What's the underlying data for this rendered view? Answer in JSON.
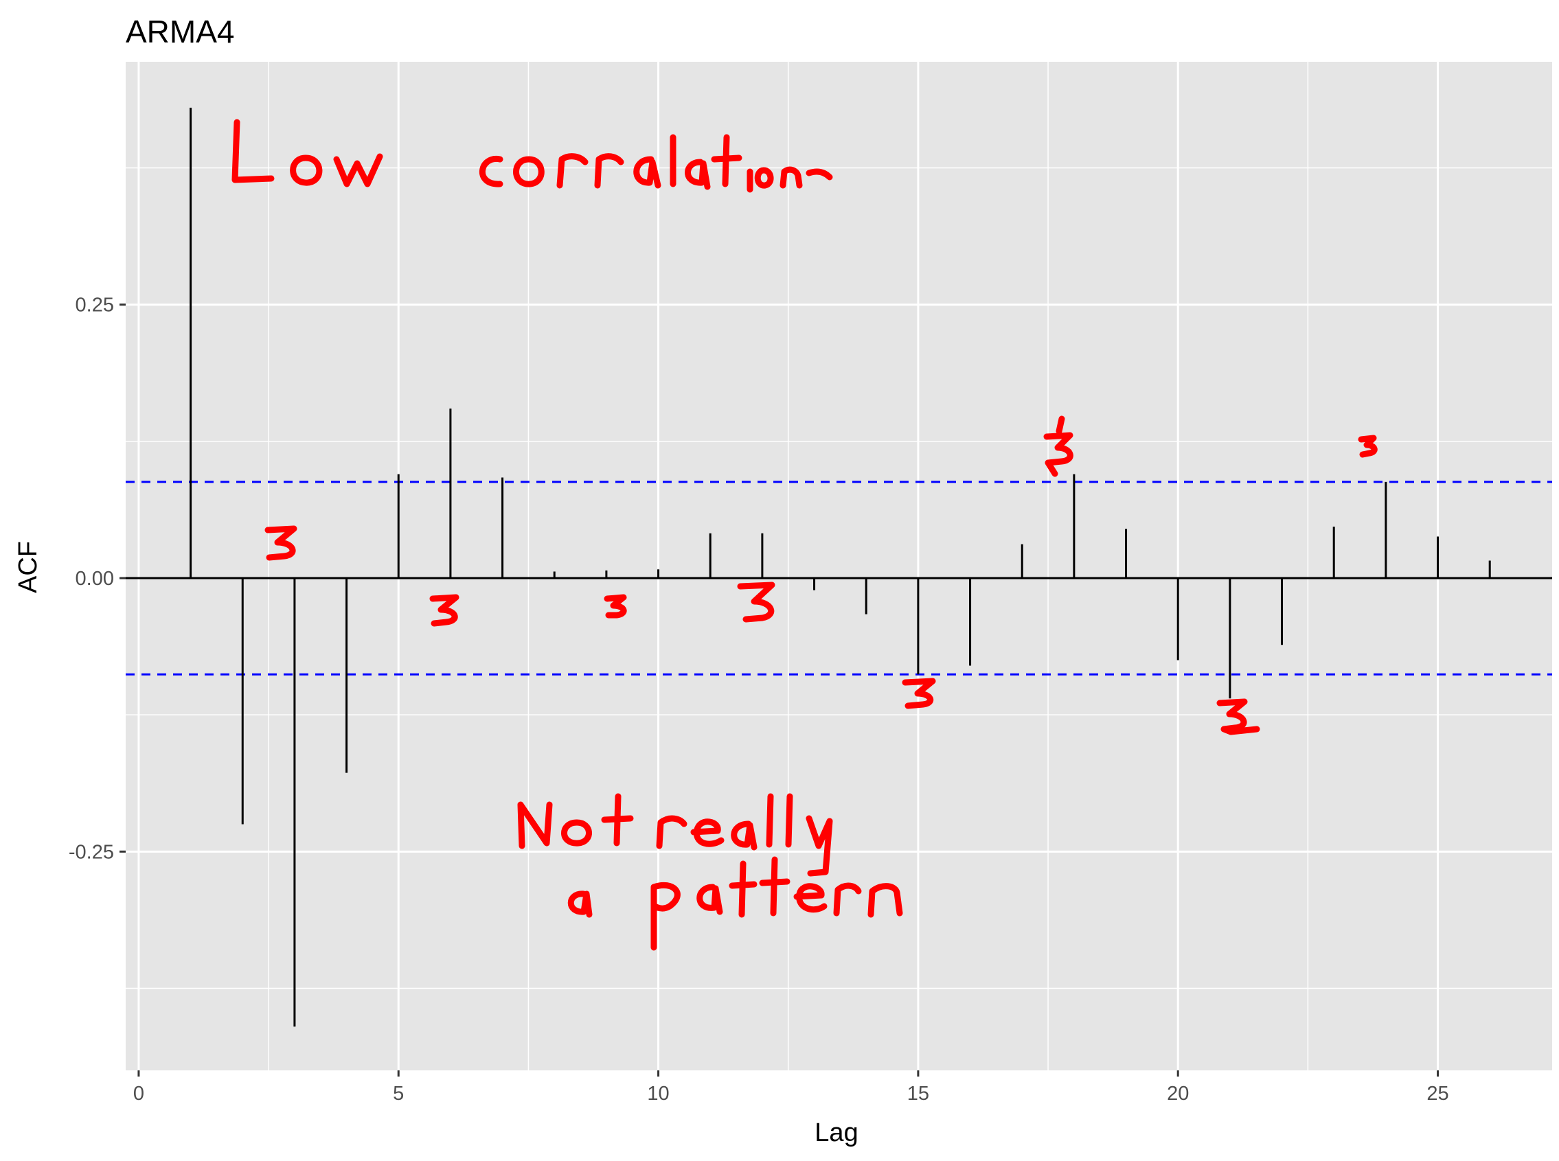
{
  "chart_data": {
    "type": "bar",
    "title": "ARMA4",
    "xlabel": "Lag",
    "ylabel": "ACF",
    "x": [
      1,
      2,
      3,
      4,
      5,
      6,
      7,
      8,
      9,
      10,
      11,
      12,
      13,
      14,
      15,
      16,
      17,
      18,
      19,
      20,
      21,
      22,
      23,
      24,
      25,
      26
    ],
    "values": [
      0.43,
      -0.225,
      -0.41,
      -0.178,
      0.095,
      0.155,
      0.092,
      0.006,
      0.007,
      0.008,
      0.041,
      0.041,
      -0.011,
      -0.033,
      -0.088,
      -0.08,
      0.031,
      0.095,
      0.045,
      -0.075,
      -0.11,
      -0.061,
      0.047,
      0.088,
      0.038,
      0.016
    ],
    "confidence_band": 0.088,
    "xlim": [
      -0.25,
      27.2
    ],
    "ylim": [
      -0.45,
      0.472
    ],
    "xticks": [
      0,
      5,
      10,
      15,
      20,
      25
    ],
    "xtick_labels": [
      "0",
      "5",
      "10",
      "15",
      "20",
      "25"
    ],
    "yticks": [
      -0.25,
      0.0,
      0.25
    ],
    "ytick_labels": [
      "-0.25",
      "0.00",
      "0.25"
    ],
    "grid": true,
    "colors": {
      "panel": "#e5e5e5",
      "grid": "#ffffff",
      "bars": "#000000",
      "band": "#0000ff",
      "annotation": "#ff0000"
    },
    "annotations": [
      "Low corrolation",
      "Not really a pattern",
      "3",
      "3",
      "3",
      "3",
      "3",
      "3",
      "3",
      "3",
      "3"
    ]
  }
}
